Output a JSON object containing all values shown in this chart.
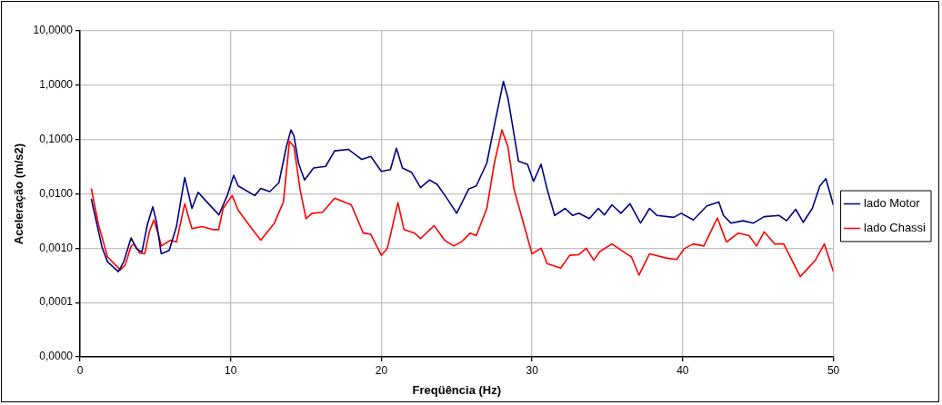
{
  "chart_data": {
    "type": "line",
    "xlabel": "Freqüência (Hz)",
    "ylabel": "Aceleração (m/s2)",
    "log": "y",
    "grid": true,
    "legend": "right",
    "marker": "none",
    "line_style": "solid",
    "xlim": [
      0,
      50
    ],
    "xticks": [
      0,
      10,
      20,
      30,
      40,
      50
    ],
    "ylim": [
      1e-05,
      10
    ],
    "yticks": [
      {
        "value": 1e-05,
        "label": "0,0000"
      },
      {
        "value": 0.0001,
        "label": "0,0001"
      },
      {
        "value": 0.001,
        "label": "0,0010"
      },
      {
        "value": 0.01,
        "label": "0,0100"
      },
      {
        "value": 0.1,
        "label": "0,1000"
      },
      {
        "value": 1,
        "label": "1,0000"
      },
      {
        "value": 10,
        "label": "10,0000"
      }
    ],
    "series": [
      {
        "name": "lado Motor",
        "color": "#000080",
        "x": [
          0.75,
          1.47,
          1.83,
          2.55,
          2.9,
          3.39,
          3.75,
          4.11,
          4.47,
          4.83,
          5.07,
          5.39,
          5.92,
          6.4,
          6.95,
          7.43,
          7.84,
          8.32,
          9.22,
          9.77,
          10.2,
          10.5,
          11.6,
          12.0,
          12.6,
          13.2,
          13.7,
          14.0,
          14.2,
          14.5,
          14.9,
          15.5,
          16.3,
          16.9,
          17.8,
          18.7,
          19.3,
          20.0,
          20.6,
          21.0,
          21.4,
          22.0,
          22.6,
          23.2,
          23.7,
          24.3,
          25.0,
          25.8,
          26.3,
          27.0,
          27.6,
          28.1,
          28.4,
          28.8,
          29.1,
          29.7,
          30.1,
          30.6,
          31.0,
          31.5,
          32.2,
          32.7,
          33.1,
          33.8,
          34.4,
          34.8,
          35.3,
          35.9,
          36.5,
          37.2,
          37.8,
          38.3,
          39.4,
          39.9,
          40.7,
          41.6,
          42.4,
          42.7,
          43.2,
          44.0,
          44.7,
          45.4,
          46.4,
          46.9,
          47.5,
          48.0,
          48.6,
          49.1,
          49.5,
          50.0
        ],
        "values": [
          0.0081,
          0.00102,
          0.00056,
          0.00037,
          0.00056,
          0.00155,
          0.00098,
          0.00085,
          0.0027,
          0.0058,
          0.0031,
          0.00079,
          0.00091,
          0.0025,
          0.02,
          0.0054,
          0.0107,
          0.0076,
          0.0041,
          0.0093,
          0.022,
          0.014,
          0.0093,
          0.0126,
          0.011,
          0.016,
          0.074,
          0.15,
          0.117,
          0.037,
          0.018,
          0.03,
          0.032,
          0.062,
          0.066,
          0.043,
          0.049,
          0.026,
          0.028,
          0.069,
          0.03,
          0.025,
          0.013,
          0.018,
          0.015,
          0.0087,
          0.0044,
          0.0123,
          0.014,
          0.037,
          0.25,
          1.17,
          0.58,
          0.126,
          0.04,
          0.035,
          0.017,
          0.035,
          0.0123,
          0.004,
          0.0054,
          0.004,
          0.0044,
          0.0035,
          0.0054,
          0.0041,
          0.0063,
          0.0044,
          0.0066,
          0.0029,
          0.0054,
          0.004,
          0.0037,
          0.0044,
          0.0033,
          0.006,
          0.0071,
          0.004,
          0.0029,
          0.0032,
          0.0029,
          0.0038,
          0.004,
          0.0032,
          0.0052,
          0.003,
          0.0054,
          0.014,
          0.019,
          0.0062
        ]
      },
      {
        "name": "lado Chassi",
        "color": "#ff0000",
        "x": [
          0.75,
          1.23,
          1.83,
          2.67,
          3.0,
          3.4,
          3.6,
          3.97,
          4.3,
          4.6,
          4.9,
          5.2,
          5.4,
          6.0,
          6.4,
          6.95,
          7.43,
          8.1,
          8.8,
          9.2,
          9.5,
          10.1,
          10.5,
          11.3,
          12.0,
          12.9,
          13.5,
          13.9,
          14.2,
          14.6,
          15.0,
          15.4,
          16.1,
          16.9,
          18.0,
          18.8,
          19.3,
          20.0,
          20.4,
          21.1,
          21.5,
          22.2,
          22.6,
          23.5,
          24.2,
          24.8,
          25.3,
          25.9,
          26.3,
          27.0,
          27.5,
          28.0,
          28.4,
          28.8,
          29.4,
          30.0,
          30.6,
          31.0,
          31.9,
          32.5,
          33.1,
          33.6,
          34.1,
          34.5,
          35.3,
          36.1,
          36.6,
          37.1,
          37.8,
          38.9,
          39.6,
          40.1,
          40.7,
          41.4,
          42.3,
          42.9,
          43.7,
          44.4,
          44.9,
          45.4,
          46.1,
          46.7,
          47.8,
          48.8,
          49.4,
          50.0
        ],
        "values": [
          0.0126,
          0.0027,
          0.00069,
          0.0004,
          0.00049,
          0.0011,
          0.0012,
          0.00081,
          0.00079,
          0.002,
          0.0033,
          0.0018,
          0.0011,
          0.0014,
          0.0013,
          0.0066,
          0.0023,
          0.0025,
          0.0022,
          0.0022,
          0.0054,
          0.0093,
          0.005,
          0.0025,
          0.0014,
          0.0029,
          0.0071,
          0.093,
          0.074,
          0.0123,
          0.0035,
          0.0044,
          0.0046,
          0.0083,
          0.0063,
          0.0019,
          0.0018,
          0.00074,
          0.001,
          0.0069,
          0.0022,
          0.0019,
          0.0015,
          0.0026,
          0.0014,
          0.0011,
          0.0013,
          0.0019,
          0.0017,
          0.0054,
          0.037,
          0.15,
          0.074,
          0.0123,
          0.0031,
          0.00079,
          0.001,
          0.00052,
          0.00043,
          0.00074,
          0.00076,
          0.001,
          0.0006,
          0.00087,
          0.0012,
          0.00085,
          0.00069,
          0.00032,
          0.00079,
          0.00066,
          0.00062,
          0.00098,
          0.0012,
          0.0011,
          0.0036,
          0.0013,
          0.0019,
          0.0017,
          0.0011,
          0.002,
          0.0012,
          0.0012,
          0.0003,
          0.0006,
          0.0012,
          0.00037
        ]
      }
    ]
  }
}
